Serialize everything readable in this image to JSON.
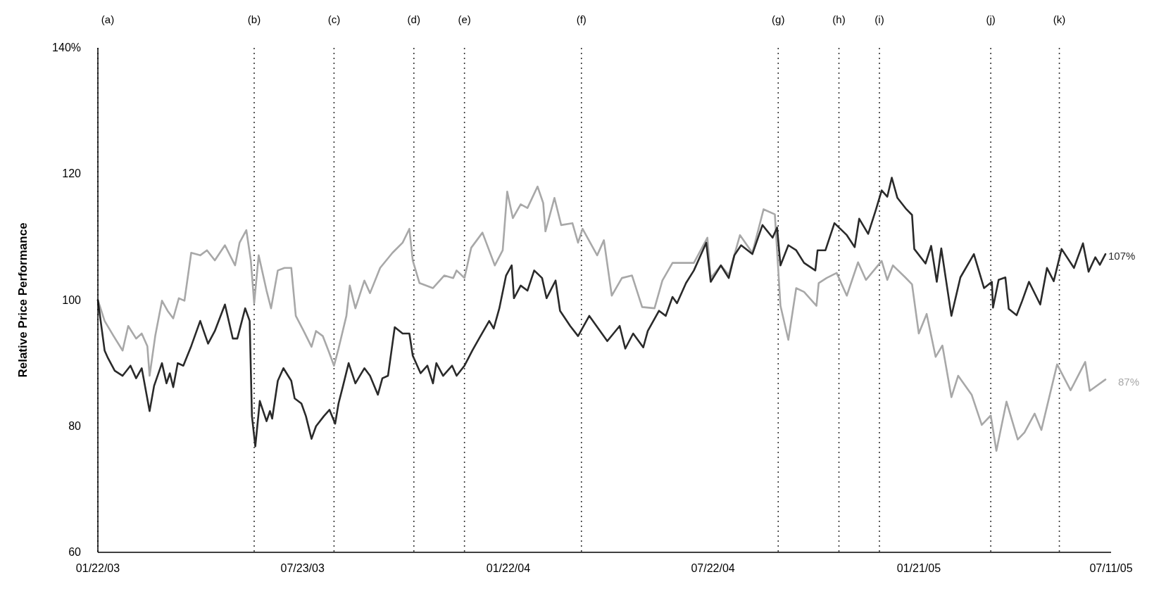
{
  "chart_data": {
    "type": "line",
    "ylabel": "Relative Price Performance",
    "xlim": [
      "2003-01-22",
      "2005-07-11"
    ],
    "xticks": [
      {
        "value": "2003-01-22",
        "label": "01/22/03"
      },
      {
        "value": "2003-07-23",
        "label": "07/23/03"
      },
      {
        "value": "2004-01-22",
        "label": "01/22/04"
      },
      {
        "value": "2004-07-22",
        "label": "07/22/04"
      },
      {
        "value": "2005-01-21",
        "label": "01/21/05"
      },
      {
        "value": "2005-07-11",
        "label": "07/11/05"
      }
    ],
    "ylim": [
      60,
      140
    ],
    "yticks": [
      60,
      80,
      100,
      120,
      {
        "value": 140,
        "label": "140%"
      }
    ],
    "grid": false,
    "series": [
      {
        "color": "#a8a8a8",
        "x": [
          "2003-01-22",
          "2003-01-28",
          "2003-02-05",
          "2003-02-13",
          "2003-02-18",
          "2003-02-25",
          "2003-03-02",
          "2003-03-07",
          "2003-03-09",
          "2003-03-14",
          "2003-03-20",
          "2003-03-25",
          "2003-03-30",
          "2003-04-04",
          "2003-04-09",
          "2003-04-15",
          "2003-04-23",
          "2003-04-29",
          "2003-05-06",
          "2003-05-15",
          "2003-05-24",
          "2003-05-28",
          "2003-06-03",
          "2003-06-07",
          "2003-06-10",
          "2003-06-14",
          "2003-06-21",
          "2003-06-25",
          "2003-07-01",
          "2003-07-07",
          "2003-07-13",
          "2003-07-17",
          "2003-07-24",
          "2003-07-31",
          "2003-08-04",
          "2003-08-10",
          "2003-08-15",
          "2003-08-20",
          "2003-08-24",
          "2003-08-31",
          "2003-09-03",
          "2003-09-08",
          "2003-09-16",
          "2003-09-21",
          "2003-09-30",
          "2003-10-11",
          "2003-10-20",
          "2003-10-26",
          "2003-10-29",
          "2003-11-04",
          "2003-11-16",
          "2003-11-26",
          "2003-12-04",
          "2003-12-07",
          "2003-12-14",
          "2003-12-20",
          "2003-12-30",
          "2004-01-10",
          "2004-01-17",
          "2004-01-21",
          "2004-01-26",
          "2004-02-02",
          "2004-02-08",
          "2004-02-17",
          "2004-02-22",
          "2004-02-24",
          "2004-03-03",
          "2004-03-09",
          "2004-03-19",
          "2004-03-24",
          "2004-03-28",
          "2004-04-10",
          "2004-04-16",
          "2004-04-23",
          "2004-05-02",
          "2004-05-11",
          "2004-05-20",
          "2004-05-31",
          "2004-06-07",
          "2004-06-16",
          "2004-06-26",
          "2004-07-05",
          "2004-07-17",
          "2004-07-20",
          "2004-07-29",
          "2004-08-05",
          "2004-08-15",
          "2004-08-26",
          "2004-09-05",
          "2004-09-15",
          "2004-09-20",
          "2004-09-27",
          "2004-10-04",
          "2004-10-11",
          "2004-10-22",
          "2004-10-24",
          "2004-10-31",
          "2004-11-09",
          "2004-11-18",
          "2004-11-28",
          "2004-12-05",
          "2004-12-19",
          "2004-12-24",
          "2004-12-29",
          "2005-01-09",
          "2005-01-15",
          "2005-01-21",
          "2005-01-28",
          "2005-02-05",
          "2005-02-11",
          "2005-02-19",
          "2005-02-25",
          "2005-03-09",
          "2005-03-18",
          "2005-03-26",
          "2005-03-31",
          "2005-04-09",
          "2005-04-19",
          "2005-04-25",
          "2005-05-04",
          "2005-05-10",
          "2005-05-24",
          "2005-06-05",
          "2005-06-18",
          "2005-06-22",
          "2005-07-06"
        ],
        "values": [
          100,
          96.7,
          94.3,
          92,
          95.9,
          93.9,
          94.7,
          92.7,
          88,
          94.3,
          99.9,
          98.3,
          97.1,
          100.3,
          99.9,
          107.5,
          107.1,
          107.9,
          106.3,
          108.7,
          105.5,
          109.1,
          111.1,
          106.3,
          99.5,
          107.1,
          101.5,
          98.7,
          104.7,
          105.1,
          105.1,
          97.5,
          95.1,
          92.6,
          95.1,
          94.3,
          92,
          89.6,
          92.3,
          97.5,
          102.3,
          98.7,
          103.1,
          101.1,
          105.1,
          107.5,
          109.1,
          111.3,
          106.3,
          102.7,
          101.9,
          103.9,
          103.5,
          104.7,
          103.5,
          108.3,
          110.7,
          105.5,
          107.9,
          117.2,
          113,
          115.2,
          114.6,
          118,
          115.4,
          110.9,
          116.2,
          111.9,
          112.2,
          109.1,
          111.3,
          107.1,
          109.5,
          100.7,
          103.5,
          103.9,
          98.9,
          98.7,
          103.1,
          105.9,
          105.9,
          105.9,
          109.9,
          103.5,
          105.5,
          104,
          110.3,
          107.5,
          114.4,
          113.6,
          99.1,
          93.7,
          101.9,
          101.3,
          99.1,
          102.7,
          103.5,
          104.3,
          100.7,
          106,
          103.2,
          106.2,
          103.2,
          105.5,
          103.6,
          102.5,
          94.7,
          97.8,
          91,
          92.8,
          84.6,
          88,
          85,
          80.2,
          81.7,
          76.1,
          83.9,
          77.9,
          79,
          82,
          79.4,
          89.8,
          85.7,
          90.2,
          85.6,
          87.4
        ]
      },
      {
        "color": "#2a2a2a",
        "x": [
          "2003-01-22",
          "2003-01-28",
          "2003-01-31",
          "2003-02-06",
          "2003-02-13",
          "2003-02-20",
          "2003-02-25",
          "2003-03-02",
          "2003-03-09",
          "2003-03-13",
          "2003-03-20",
          "2003-03-24",
          "2003-03-27",
          "2003-03-30",
          "2003-04-03",
          "2003-04-08",
          "2003-04-15",
          "2003-04-23",
          "2003-04-30",
          "2003-05-06",
          "2003-05-15",
          "2003-05-22",
          "2003-05-26",
          "2003-06-02",
          "2003-06-06",
          "2003-06-08",
          "2003-06-11",
          "2003-06-15",
          "2003-06-21",
          "2003-06-24",
          "2003-06-26",
          "2003-07-01",
          "2003-07-06",
          "2003-07-13",
          "2003-07-16",
          "2003-07-22",
          "2003-07-26",
          "2003-07-31",
          "2003-08-04",
          "2003-08-11",
          "2003-08-16",
          "2003-08-21",
          "2003-08-24",
          "2003-08-28",
          "2003-09-02",
          "2003-09-08",
          "2003-09-16",
          "2003-09-21",
          "2003-09-28",
          "2003-10-02",
          "2003-10-07",
          "2003-10-13",
          "2003-10-20",
          "2003-10-26",
          "2003-10-29",
          "2003-11-05",
          "2003-11-11",
          "2003-11-16",
          "2003-11-19",
          "2003-11-25",
          "2003-12-03",
          "2003-12-07",
          "2003-12-14",
          "2003-12-21",
          "2003-12-27",
          "2004-01-05",
          "2004-01-09",
          "2004-01-14",
          "2004-01-20",
          "2004-01-25",
          "2004-01-27",
          "2004-02-02",
          "2004-02-08",
          "2004-02-14",
          "2004-02-21",
          "2004-02-25",
          "2004-03-04",
          "2004-03-08",
          "2004-03-17",
          "2004-03-24",
          "2004-04-03",
          "2004-04-19",
          "2004-04-30",
          "2004-05-05",
          "2004-05-12",
          "2004-05-21",
          "2004-05-25",
          "2004-06-04",
          "2004-06-10",
          "2004-06-16",
          "2004-06-20",
          "2004-06-28",
          "2004-07-05",
          "2004-07-16",
          "2004-07-20",
          "2004-07-29",
          "2004-08-05",
          "2004-08-10",
          "2004-08-16",
          "2004-08-26",
          "2004-09-04",
          "2004-09-13",
          "2004-09-17",
          "2004-09-20",
          "2004-09-27",
          "2004-10-04",
          "2004-10-11",
          "2004-10-21",
          "2004-10-23",
          "2004-10-30",
          "2004-11-07",
          "2004-11-18",
          "2004-11-25",
          "2004-11-29",
          "2004-12-07",
          "2004-12-14",
          "2004-12-19",
          "2004-12-24",
          "2004-12-28",
          "2005-01-02",
          "2005-01-10",
          "2005-01-15",
          "2005-01-17",
          "2005-01-27",
          "2005-02-01",
          "2005-02-06",
          "2005-02-10",
          "2005-02-19",
          "2005-02-27",
          "2005-03-11",
          "2005-03-20",
          "2005-03-27",
          "2005-03-28",
          "2005-04-02",
          "2005-04-08",
          "2005-04-11",
          "2005-04-18",
          "2005-04-23",
          "2005-04-29",
          "2005-05-09",
          "2005-05-15",
          "2005-05-21",
          "2005-05-28",
          "2005-06-08",
          "2005-06-16",
          "2005-06-21",
          "2005-06-27",
          "2005-07-01",
          "2005-07-06"
        ],
        "values": [
          100,
          92,
          90.8,
          88.8,
          88,
          89.6,
          87.6,
          89.2,
          82.4,
          86.4,
          90,
          86.8,
          88.4,
          86.2,
          90,
          89.6,
          92.7,
          96.7,
          93.1,
          95.1,
          99.3,
          93.9,
          93.9,
          98.7,
          96.7,
          81.6,
          76.8,
          84,
          80.8,
          82.4,
          81.2,
          87.2,
          89.2,
          87.2,
          84.4,
          83.6,
          81.6,
          78,
          80,
          81.6,
          82.6,
          80.4,
          83.6,
          86.4,
          90,
          86.8,
          89.2,
          88,
          85,
          87.6,
          88,
          95.7,
          94.7,
          94.7,
          91.2,
          88.4,
          89.6,
          86.8,
          90,
          88,
          89.6,
          88,
          89.6,
          92,
          93.9,
          96.7,
          95.5,
          98.7,
          103.9,
          105.5,
          100.3,
          102.3,
          101.5,
          104.7,
          103.5,
          100.3,
          103.1,
          98.3,
          95.9,
          94.3,
          97.5,
          93.5,
          95.9,
          92.3,
          94.7,
          92.5,
          95.1,
          98.3,
          97.5,
          100.5,
          99.5,
          102.7,
          104.7,
          109.1,
          102.9,
          105.5,
          103.5,
          107.1,
          108.7,
          107.3,
          111.9,
          109.9,
          111.5,
          105.5,
          108.7,
          107.9,
          105.9,
          104.7,
          107.9,
          107.9,
          112.2,
          110.3,
          108.4,
          112.9,
          110.5,
          114.4,
          117.4,
          116.4,
          119.4,
          116.2,
          114.4,
          113.5,
          108.1,
          105.8,
          108.6,
          102.9,
          108.2,
          97.5,
          103.6,
          107.3,
          101.9,
          102.9,
          98.8,
          103.2,
          103.6,
          98.6,
          97.6,
          99.9,
          102.9,
          99.3,
          105.1,
          103,
          108.1,
          105.1,
          109,
          104.5,
          106.8,
          105.6,
          107.3
        ]
      }
    ],
    "ref_lines": [
      {
        "axis": "x",
        "value": "2003-01-22",
        "label": "(a)",
        "color": "#333333",
        "line_style": "dotted"
      },
      {
        "axis": "x",
        "value": "2003-06-10",
        "label": "(b)",
        "color": "#333333",
        "line_style": "dotted"
      },
      {
        "axis": "x",
        "value": "2003-08-20",
        "label": "(c)",
        "color": "#333333",
        "line_style": "dotted"
      },
      {
        "axis": "x",
        "value": "2003-10-30",
        "label": "(d)",
        "color": "#333333",
        "line_style": "dotted"
      },
      {
        "axis": "x",
        "value": "2003-12-14",
        "label": "(e)",
        "color": "#333333",
        "line_style": "dotted"
      },
      {
        "axis": "x",
        "value": "2004-03-27",
        "label": "(f)",
        "color": "#333333",
        "line_style": "dotted"
      },
      {
        "axis": "x",
        "value": "2004-09-18",
        "label": "(g)",
        "color": "#333333",
        "line_style": "dotted"
      },
      {
        "axis": "x",
        "value": "2004-11-11",
        "label": "(h)",
        "color": "#333333",
        "line_style": "dotted"
      },
      {
        "axis": "x",
        "value": "2004-12-17",
        "label": "(i)",
        "color": "#333333",
        "line_style": "dotted"
      },
      {
        "axis": "x",
        "value": "2005-03-26",
        "label": "(j)",
        "color": "#333333",
        "line_style": "dotted"
      },
      {
        "axis": "x",
        "value": "2005-05-26",
        "label": "(k)",
        "color": "#333333",
        "line_style": "dotted"
      }
    ],
    "annotations": [
      {
        "text": "107%",
        "x": "2005-07-06",
        "y": 107
      },
      {
        "text": "87%",
        "x": "2005-07-06",
        "y": 87
      }
    ]
  }
}
